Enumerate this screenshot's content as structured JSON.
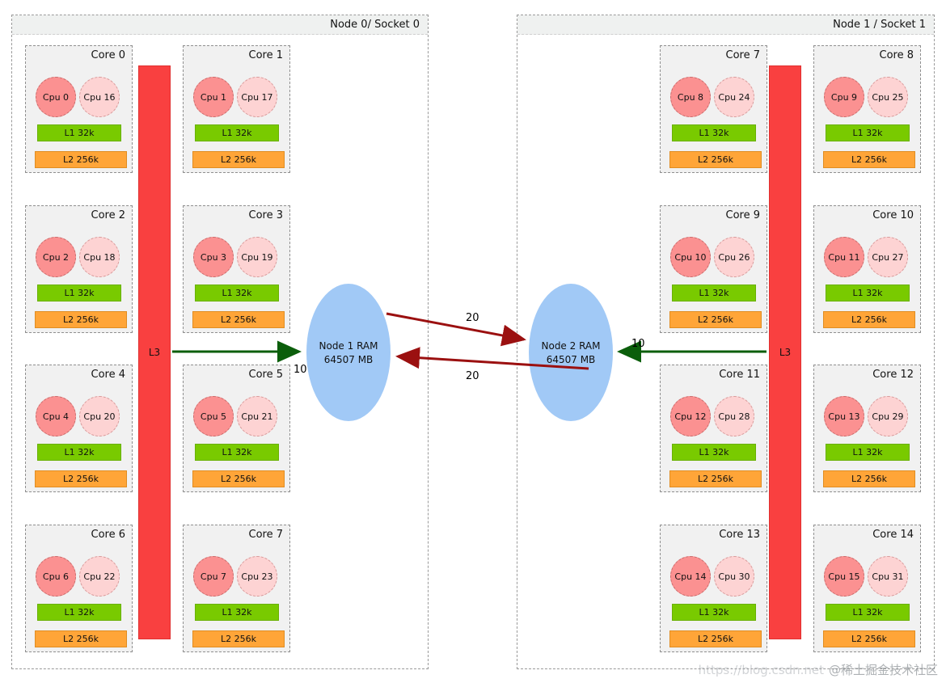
{
  "nodes": [
    {
      "title": "Node 0/ Socket 0",
      "l3_label": "L3",
      "ram": {
        "line1": "Node 1 RAM",
        "line2": "64507 MB"
      },
      "columns": [
        [
          {
            "title": "Core 0",
            "cpu1": "Cpu 0",
            "cpu2": "Cpu 16",
            "l1": "L1 32k",
            "l2": "L2 256k"
          },
          {
            "title": "Core 2",
            "cpu1": "Cpu 2",
            "cpu2": "Cpu 18",
            "l1": "L1 32k",
            "l2": "L2 256k"
          },
          {
            "title": "Core 4",
            "cpu1": "Cpu 4",
            "cpu2": "Cpu 20",
            "l1": "L1 32k",
            "l2": "L2 256k"
          },
          {
            "title": "Core 6",
            "cpu1": "Cpu 6",
            "cpu2": "Cpu 22",
            "l1": "L1 32k",
            "l2": "L2 256k"
          }
        ],
        [
          {
            "title": "Core 1",
            "cpu1": "Cpu 1",
            "cpu2": "Cpu 17",
            "l1": "L1 32k",
            "l2": "L2 256k"
          },
          {
            "title": "Core 3",
            "cpu1": "Cpu 3",
            "cpu2": "Cpu 19",
            "l1": "L1 32k",
            "l2": "L2 256k"
          },
          {
            "title": "Core 5",
            "cpu1": "Cpu 5",
            "cpu2": "Cpu 21",
            "l1": "L1 32k",
            "l2": "L2 256k"
          },
          {
            "title": "Core 7",
            "cpu1": "Cpu 7",
            "cpu2": "Cpu 23",
            "l1": "L1 32k",
            "l2": "L2 256k"
          }
        ]
      ]
    },
    {
      "title": "Node 1 / Socket 1",
      "l3_label": "L3",
      "ram": {
        "line1": "Node 2 RAM",
        "line2": "64507 MB"
      },
      "columns": [
        [
          {
            "title": "Core 7",
            "cpu1": "Cpu 8",
            "cpu2": "Cpu 24",
            "l1": "L1 32k",
            "l2": "L2 256k"
          },
          {
            "title": "Core 9",
            "cpu1": "Cpu 10",
            "cpu2": "Cpu 26",
            "l1": "L1 32k",
            "l2": "L2 256k"
          },
          {
            "title": "Core 11",
            "cpu1": "Cpu 12",
            "cpu2": "Cpu 28",
            "l1": "L1 32k",
            "l2": "L2 256k"
          },
          {
            "title": "Core 13",
            "cpu1": "Cpu 14",
            "cpu2": "Cpu 30",
            "l1": "L1 32k",
            "l2": "L2 256k"
          }
        ],
        [
          {
            "title": "Core 8",
            "cpu1": "Cpu 9",
            "cpu2": "Cpu 25",
            "l1": "L1 32k",
            "l2": "L2 256k"
          },
          {
            "title": "Core 10",
            "cpu1": "Cpu 11",
            "cpu2": "Cpu 27",
            "l1": "L1 32k",
            "l2": "L2 256k"
          },
          {
            "title": "Core 12",
            "cpu1": "Cpu 13",
            "cpu2": "Cpu 29",
            "l1": "L1 32k",
            "l2": "L2 256k"
          },
          {
            "title": "Core 14",
            "cpu1": "Cpu 15",
            "cpu2": "Cpu 31",
            "l1": "L1 32k",
            "l2": "L2 256k"
          }
        ]
      ]
    }
  ],
  "latencies": {
    "local_left": "10",
    "local_right": "10",
    "remote_top": "20",
    "remote_bottom": "20"
  },
  "colors": {
    "l3_red": "#f94040",
    "l1_green": "#79ca00",
    "l2_orange": "#ffa538",
    "cpu_primary": "#fb9191",
    "cpu_secondary": "#fdd3d3",
    "ram_blue": "#a1c9f6",
    "arrow_local_green": "#0b5e0b",
    "arrow_remote_red": "#9b1010"
  },
  "watermark": {
    "url": "https://blog.csdn.net",
    "community": "@稀土掘金技术社区"
  }
}
